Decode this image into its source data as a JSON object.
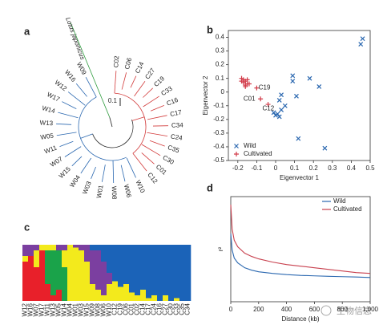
{
  "tree": {
    "panel_label": "a",
    "outgroup": "Lotus japonicus",
    "scale_label": "0.1",
    "wild_leaves": [
      "W09",
      "W16",
      "W12",
      "W17",
      "W14",
      "W13",
      "W05",
      "W11",
      "W07",
      "W15",
      "W04",
      "W03",
      "W01",
      "W08",
      "W06",
      "W10"
    ],
    "cultivated_leaves": [
      "C12",
      "C01",
      "C30",
      "C35",
      "C24",
      "C34",
      "C17",
      "C16",
      "C33",
      "C19",
      "C27",
      "C14",
      "C06",
      "C02"
    ]
  },
  "chart_data": [
    {
      "type": "scatter",
      "panel_label": "b",
      "xlabel": "Eigenvector 1",
      "ylabel": "Eigenvector 2",
      "xlim": [
        -0.25,
        0.5
      ],
      "ylim": [
        -0.5,
        0.45
      ],
      "xticks": [
        -0.2,
        -0.1,
        0,
        0.1,
        0.2,
        0.3,
        0.4,
        0.5
      ],
      "yticks": [
        -0.5,
        -0.4,
        -0.3,
        -0.2,
        -0.1,
        0,
        0.1,
        0.2,
        0.3,
        0.4
      ],
      "legend": "lower left",
      "series": [
        {
          "name": "Wild",
          "color": "#2b68b0",
          "marker": "x",
          "x": [
            0.46,
            0.45,
            0.09,
            0.09,
            0.18,
            0.23,
            0.03,
            0.02,
            0.11,
            0.05,
            0.03,
            0.01,
            0.02,
            0.0,
            0.12,
            0.26,
            -0.01
          ],
          "y": [
            0.39,
            0.35,
            0.12,
            0.08,
            0.1,
            0.04,
            -0.02,
            -0.06,
            -0.03,
            -0.1,
            -0.13,
            -0.16,
            -0.18,
            -0.17,
            -0.34,
            -0.41,
            -0.15
          ]
        },
        {
          "name": "Cultivated",
          "color": "#d23a48",
          "marker": "+",
          "x": [
            -0.18,
            -0.17,
            -0.16,
            -0.17,
            -0.15,
            -0.16,
            -0.14,
            -0.18,
            -0.15,
            -0.16,
            -0.1,
            -0.08,
            -0.04
          ],
          "y": [
            0.1,
            0.09,
            0.08,
            0.07,
            0.06,
            0.05,
            0.06,
            0.08,
            0.09,
            0.04,
            0.03,
            -0.05,
            -0.09
          ]
        }
      ],
      "annotations": [
        {
          "text": "C19",
          "x": -0.09,
          "y": 0.03
        },
        {
          "text": "C01",
          "x": -0.17,
          "y": -0.05
        },
        {
          "text": "C12",
          "x": -0.07,
          "y": -0.12
        }
      ]
    },
    {
      "type": "line",
      "panel_label": "d",
      "xlabel": "Distance (kb)",
      "ylabel": "r²",
      "xlim": [
        0,
        1000
      ],
      "ylim": [
        0,
        0.65
      ],
      "xticks": [
        0,
        200,
        400,
        600,
        800,
        {
          "value": 1000,
          "label": "1,000"
        }
      ],
      "legend": "upper right",
      "x": [
        0,
        10,
        25,
        50,
        100,
        150,
        200,
        300,
        400,
        500,
        600,
        700,
        800,
        900,
        1000
      ],
      "series": [
        {
          "name": "Wild",
          "color": "#2b68b0",
          "values": [
            0.42,
            0.32,
            0.27,
            0.24,
            0.21,
            0.195,
            0.185,
            0.175,
            0.168,
            0.163,
            0.16,
            0.157,
            0.155,
            0.153,
            0.15
          ]
        },
        {
          "name": "Cultivated",
          "color": "#c8404e",
          "values": [
            0.6,
            0.45,
            0.38,
            0.34,
            0.3,
            0.28,
            0.265,
            0.245,
            0.23,
            0.22,
            0.21,
            0.2,
            0.19,
            0.18,
            0.175
          ]
        }
      ]
    },
    {
      "type": "stacked_bar",
      "panel_label": "c",
      "ylim": [
        0,
        1
      ],
      "categories": [
        "W12",
        "W16",
        "W07",
        "W17",
        "W11",
        "W13",
        "W05",
        "W14",
        "W04",
        "W01",
        "W03",
        "W15",
        "W09",
        "W08",
        "W06",
        "W10",
        "C12",
        "C19",
        "C06",
        "C01",
        "C02",
        "C14",
        "C17",
        "C24",
        "C16",
        "C27",
        "C30",
        "C33",
        "C35",
        "C34"
      ],
      "series": [
        {
          "color": "#e8202a",
          "values": [
            0.7,
            0.8,
            0.6,
            0.9,
            0.3,
            0.1,
            0.2,
            0,
            0,
            0,
            0,
            0,
            0,
            0,
            0,
            0,
            0,
            0,
            0,
            0,
            0,
            0,
            0,
            0,
            0,
            0,
            0,
            0,
            0,
            0
          ]
        },
        {
          "color": "#1aa34a",
          "values": [
            0,
            0,
            0,
            0,
            0.6,
            0.8,
            0.7,
            0.6,
            0,
            0,
            0,
            0,
            0,
            0,
            0,
            0,
            0,
            0,
            0,
            0,
            0,
            0,
            0,
            0,
            0,
            0,
            0,
            0,
            0,
            0
          ]
        },
        {
          "color": "#f3ea1c",
          "values": [
            0.1,
            0,
            0.3,
            0.1,
            0.1,
            0.1,
            0,
            0.3,
            1,
            0.95,
            0.9,
            0.7,
            0.3,
            0.2,
            0.1,
            0.3,
            0.35,
            0.25,
            0.3,
            0.15,
            0.1,
            0.2,
            0.05,
            0.1,
            0,
            0.1,
            0,
            0.05,
            0,
            0
          ]
        },
        {
          "color": "#7b3fa0",
          "values": [
            0.2,
            0.2,
            0.1,
            0,
            0,
            0,
            0.1,
            0.1,
            0,
            0.05,
            0.1,
            0.3,
            0.6,
            0.7,
            0.6,
            0.2,
            0,
            0,
            0,
            0,
            0,
            0,
            0,
            0,
            0,
            0,
            0,
            0,
            0,
            0
          ]
        },
        {
          "color": "#1b63b8",
          "values": [
            0,
            0,
            0,
            0,
            0,
            0,
            0,
            0,
            0,
            0,
            0,
            0,
            0.1,
            0.1,
            0.3,
            0.5,
            0.65,
            0.75,
            0.7,
            0.85,
            0.9,
            0.8,
            0.95,
            0.9,
            1,
            0.9,
            1,
            0.95,
            1,
            1
          ]
        }
      ]
    }
  ],
  "watermark": "生物信息"
}
